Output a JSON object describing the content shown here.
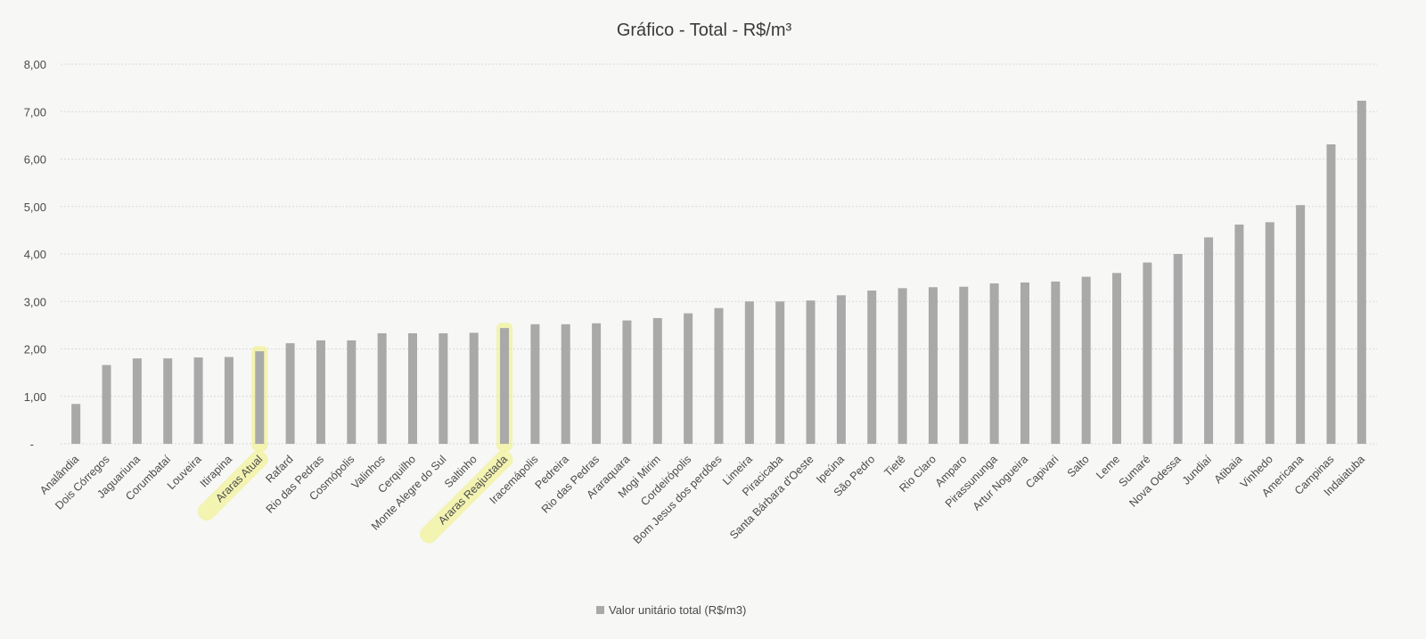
{
  "chart_data": {
    "type": "bar",
    "title": "Gráfico - Total - R$/m³",
    "xlabel": "",
    "ylabel": "",
    "ylim": [
      0,
      8
    ],
    "y_ticks": [
      "-",
      "1,00",
      "2,00",
      "3,00",
      "4,00",
      "5,00",
      "6,00",
      "7,00",
      "8,00"
    ],
    "grid": true,
    "legend_position": "bottom",
    "highlighted_categories": [
      "Araras Atual",
      "Araras Reajustada"
    ],
    "colors": {
      "bar": "#a9a9a9",
      "highlight": "#f0f07a"
    },
    "categories": [
      "Analândia",
      "Dois Córregos",
      "Jaguariuna",
      "Corumbataí",
      "Louveira",
      "Itirapina",
      "Araras Atual",
      "Rafard",
      "Rio das Pedras",
      "Cosmópolis",
      "Valinhos",
      "Cerquilho",
      "Monte Alegre do Sul",
      "Saltinho",
      "Araras Reajustada",
      "Iracemápolis",
      "Pedreira",
      "Rio das Pedras",
      "Araraquara",
      "Mogi Mirim",
      "Cordeirópolis",
      "Bom Jesus dos perdões",
      "Limeira",
      "Piracicaba",
      "Santa Bárbara d'Oeste",
      "Ipeúna",
      "São Pedro",
      "Tietê",
      "Rio Claro",
      "Amparo",
      "Pirassununga",
      "Artur Nogueira",
      "Capivari",
      "Salto",
      "Leme",
      "Sumaré",
      "Nova Odessa",
      "Jundiaí",
      "Atibaia",
      "Vinhedo",
      "Americana",
      "Campinas",
      "Indaiatuba"
    ],
    "series": [
      {
        "name": "Valor unitário total (R$/m3)",
        "values": [
          0.84,
          1.66,
          1.8,
          1.8,
          1.82,
          1.83,
          1.95,
          2.12,
          2.18,
          2.18,
          2.33,
          2.33,
          2.33,
          2.34,
          2.44,
          2.52,
          2.52,
          2.54,
          2.6,
          2.65,
          2.75,
          2.86,
          3.0,
          3.0,
          3.02,
          3.13,
          3.23,
          3.28,
          3.3,
          3.31,
          3.38,
          3.4,
          3.42,
          3.52,
          3.6,
          3.82,
          4.0,
          4.35,
          4.62,
          4.67,
          5.03,
          6.31,
          7.23
        ]
      }
    ]
  }
}
